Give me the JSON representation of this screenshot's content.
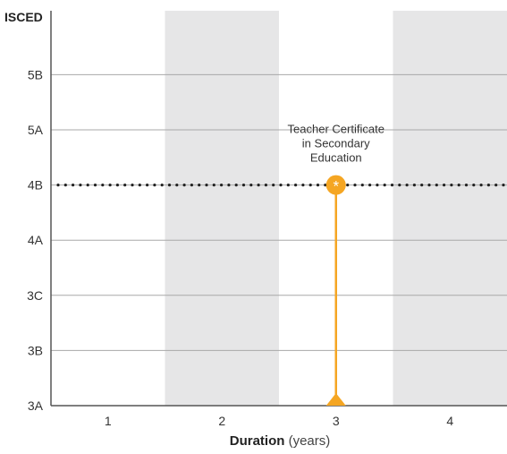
{
  "chart_data": {
    "type": "scatter",
    "y_axis_title": "ISCED",
    "x_axis_title_bold": "Duration",
    "x_axis_title_unit": " (years)",
    "y_categories": [
      "3A",
      "3B",
      "3C",
      "4A",
      "4B",
      "5A",
      "5B"
    ],
    "x_ticks": [
      "1",
      "2",
      "3",
      "4"
    ],
    "xlim": [
      0.5,
      4.5
    ],
    "shaded_columns": [
      2,
      4
    ],
    "reference_level": "4B",
    "reference_style": "dotted",
    "points": [
      {
        "x": 3,
        "y": "4B",
        "from": "3A",
        "marker_symbol": "*",
        "label": [
          "Teacher Certificate",
          "in Secondary",
          "Education"
        ]
      }
    ],
    "colors": {
      "series": "#f5a623",
      "shade": "#e6e6e7",
      "grid": "#a8a8a8",
      "axis": "#555555",
      "reference": "#222222"
    }
  }
}
